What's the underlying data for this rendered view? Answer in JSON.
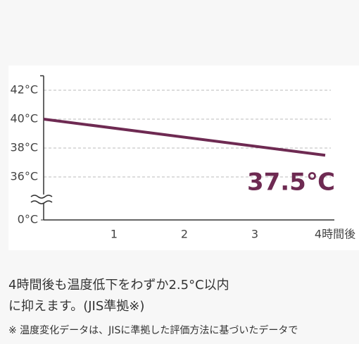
{
  "chart_data": {
    "type": "line",
    "x": [
      0,
      4
    ],
    "series": [
      {
        "name": null,
        "color": "#6e2a52",
        "values": [
          40,
          37.5
        ]
      }
    ],
    "annotation": "37.5℃",
    "xlim": [
      0,
      4
    ],
    "xticks": [
      1,
      2,
      3,
      {
        "value": 4,
        "label": "4時間後"
      }
    ],
    "ylim": [
      0,
      43
    ],
    "axis_break": [
      0,
      36
    ],
    "yticks": [
      {
        "value": 0,
        "label": "0°C"
      },
      {
        "value": 36,
        "label": "36°C"
      },
      {
        "value": 38,
        "label": "38°C"
      },
      {
        "value": 40,
        "label": "40°C"
      },
      {
        "value": 42,
        "label": "42°C"
      }
    ],
    "grid": true
  },
  "text": {
    "lines": [
      "4時間後も温度低下をわずか2.5°C以内",
      "に抑えます。(JIS準拠※)"
    ],
    "note": "※ 温度変化データは、JISに準拠した評価方法に基づいたデータで"
  }
}
